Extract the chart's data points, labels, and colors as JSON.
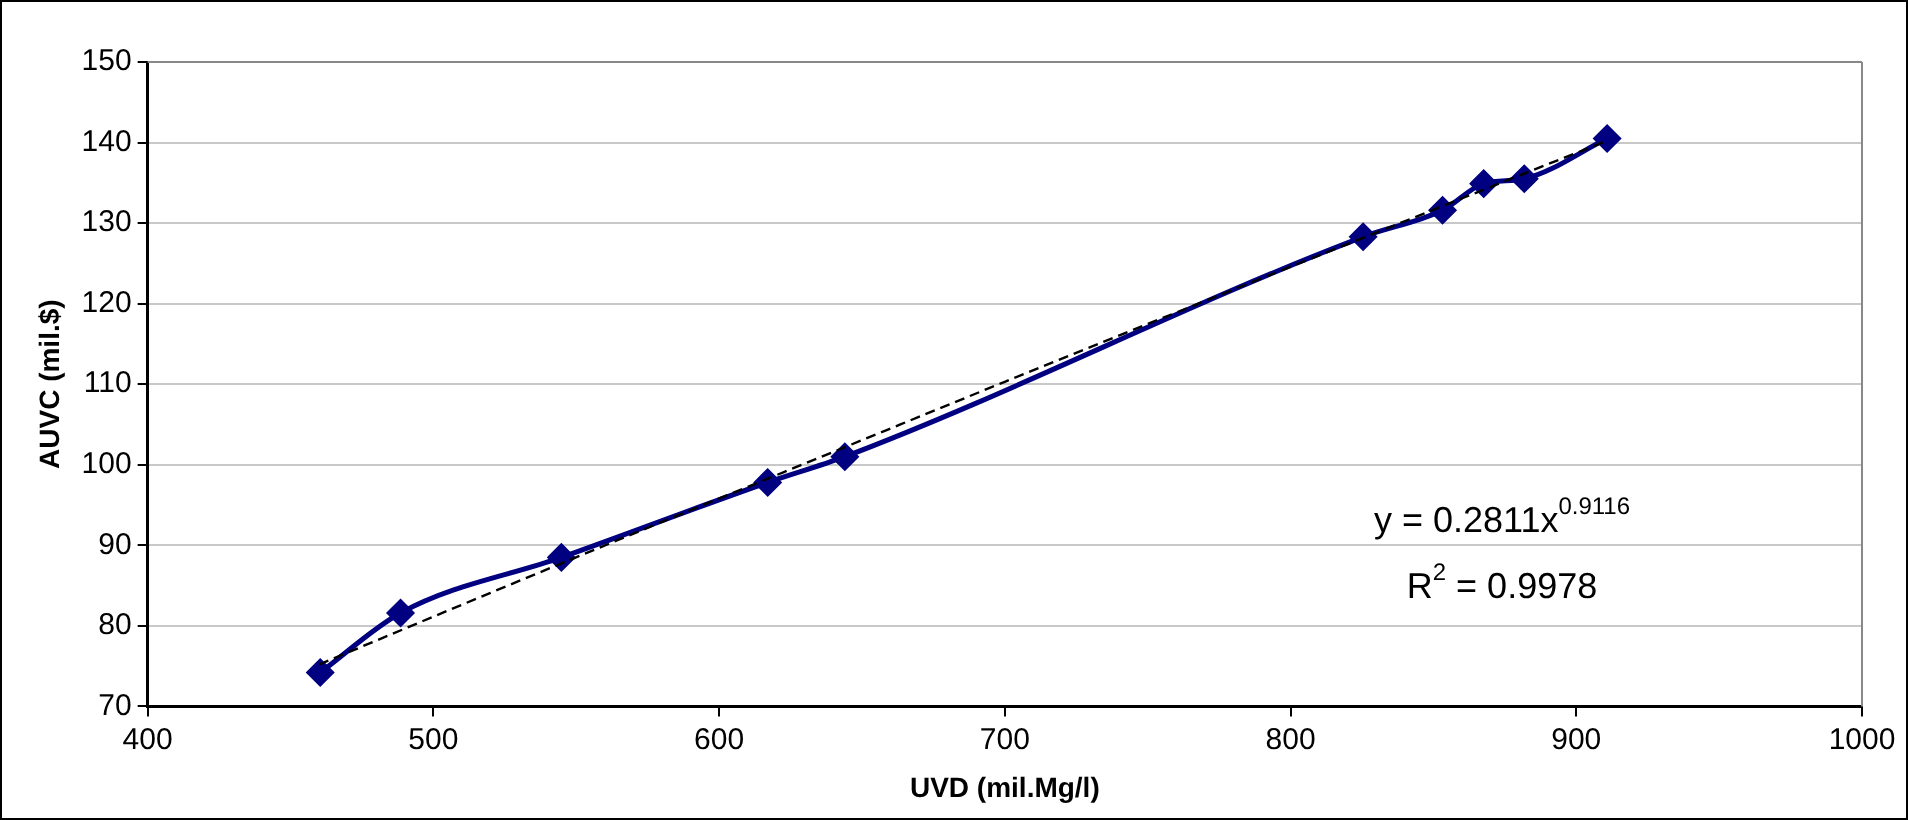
{
  "chart_data": {
    "type": "scatter",
    "xlabel": "UVD (mil.Mg/l)",
    "ylabel": "AUVC (mil.$)",
    "xlim": [
      400,
      1000
    ],
    "xticks": [
      400,
      500,
      600,
      700,
      800,
      900,
      1000
    ],
    "ylim": [
      70,
      150
    ],
    "yticks": [
      70,
      80,
      90,
      100,
      110,
      120,
      130,
      140,
      150
    ],
    "grid": "y",
    "legend": false,
    "series": [
      {
        "type": "line",
        "color": "#000080",
        "marker": "diamond",
        "line_style": "solid",
        "x": [
          460.4,
          488.5,
          544.8,
          617,
          644,
          825.4,
          853.2,
          867.6,
          881.8,
          910.8
        ],
        "values": [
          74.2,
          81.6,
          88.5,
          97.8,
          101,
          128.3,
          131.6,
          134.9,
          135.5,
          140.5
        ]
      },
      {
        "type": "line",
        "color": "#000000",
        "marker": "none",
        "line_style": "dashed",
        "x": [
          460,
          520,
          580,
          640,
          700,
          760,
          820,
          880,
          910
        ],
        "values": [
          75.2,
          84.1,
          92.9,
          101.6,
          110.3,
          118.9,
          127.4,
          135.9,
          140.1
        ]
      }
    ],
    "annotations": [
      "y = 0.2811x$^{0.9116}$",
      "R$^{2}$ = 0.9978"
    ]
  }
}
